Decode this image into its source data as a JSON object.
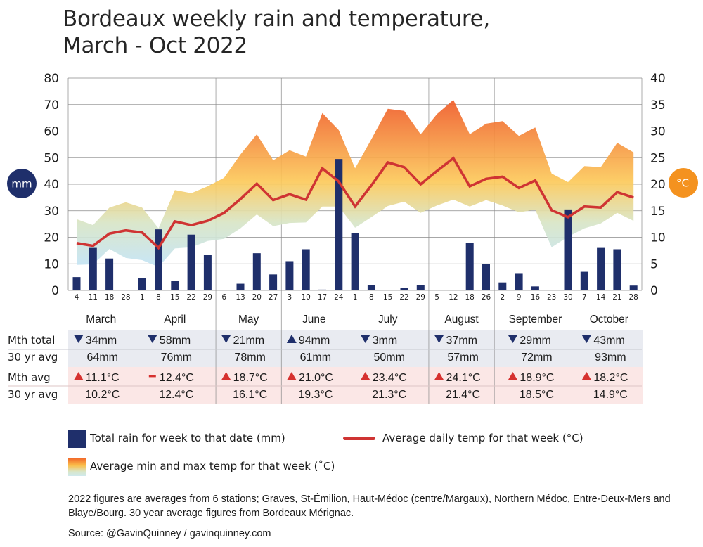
{
  "title": {
    "line1": "Bordeaux weekly rain and temperature,",
    "line2": "March - Oct 2022"
  },
  "badges": {
    "left": "mm",
    "right": "°C",
    "left_color": "#1f2f6b",
    "right_color": "#f4921f"
  },
  "colors": {
    "rain_bar": "#1f2f6b",
    "avg_temp_line": "#cf3433",
    "band_top": "#f0602a",
    "band_mid": "#fccb5a",
    "band_low": "#d3e7d2",
    "band_bottom": "#c9e6f2",
    "rain_row_bg": "#e9ebf1",
    "temp_row_bg": "#fbe7e6",
    "down_marker": "#1f2f6b",
    "up_marker_rain": "#1f2f6b",
    "up_marker_temp": "#d6312f"
  },
  "chart_data": {
    "type": "bar+line+area",
    "title": "Bordeaux weekly rain and temperature, March - Oct 2022",
    "left_axis": {
      "label": "mm",
      "ylim": [
        0,
        80
      ],
      "ticks": [
        "0",
        "10",
        "20",
        "30",
        "40",
        "50",
        "60",
        "70",
        "80"
      ]
    },
    "right_axis": {
      "label": "°C",
      "ylim": [
        0,
        40
      ],
      "ticks": [
        "0",
        "5",
        "10",
        "15",
        "20",
        "25",
        "30",
        "35",
        "40"
      ]
    },
    "grid": true,
    "months": [
      {
        "name": "March",
        "weeks": [
          "4",
          "11",
          "18",
          "28"
        ]
      },
      {
        "name": "April",
        "weeks": [
          "1",
          "8",
          "15",
          "22",
          "29"
        ]
      },
      {
        "name": "May",
        "weeks": [
          "6",
          "13",
          "20",
          "27"
        ]
      },
      {
        "name": "June",
        "weeks": [
          "3",
          "10",
          "17",
          "24"
        ]
      },
      {
        "name": "July",
        "weeks": [
          "1",
          "8",
          "15",
          "22",
          "29"
        ]
      },
      {
        "name": "August",
        "weeks": [
          "5",
          "12",
          "18",
          "26"
        ]
      },
      {
        "name": "September",
        "weeks": [
          "2",
          "9",
          "16",
          "23",
          "30"
        ]
      },
      {
        "name": "October",
        "weeks": [
          "7",
          "14",
          "21",
          "28"
        ]
      }
    ],
    "series": [
      {
        "name": "Total rain for week to that date (mm)",
        "type": "bar",
        "axis": "left",
        "values": [
          5,
          16,
          12,
          0,
          4.5,
          23,
          3.5,
          21,
          13.5,
          0,
          2.5,
          14,
          6,
          11,
          15.5,
          0.3,
          49.5,
          21.5,
          2,
          0,
          0.8,
          2,
          0,
          0,
          17.8,
          10,
          3,
          6.5,
          1.5,
          0,
          30.5,
          7,
          16,
          15.5,
          1.8
        ]
      },
      {
        "name": "Average daily temp for that week (°C)",
        "type": "line",
        "axis": "right",
        "values": [
          8.9,
          8.4,
          10.7,
          11.3,
          10.9,
          8.0,
          13.0,
          12.3,
          13.1,
          14.6,
          17.2,
          20.1,
          17.0,
          18.1,
          17.1,
          23.0,
          20.5,
          15.8,
          19.8,
          24.1,
          23.2,
          20.0,
          22.5,
          24.9,
          19.6,
          21.0,
          21.4,
          19.3,
          20.7,
          15.1,
          13.8,
          15.8,
          15.6,
          18.5,
          17.5
        ]
      },
      {
        "name": "Average min and max temp for that week (°C)",
        "type": "area",
        "axis": "right",
        "max": [
          13.4,
          12.3,
          15.6,
          16.6,
          15.6,
          11.7,
          18.9,
          18.3,
          19.6,
          21.2,
          25.6,
          29.4,
          24.5,
          26.4,
          25.2,
          33.4,
          30.2,
          23.0,
          28.5,
          34.2,
          33.8,
          29.4,
          33.2,
          35.9,
          29.4,
          31.4,
          31.9,
          29.1,
          30.7,
          22.0,
          20.4,
          23.4,
          23.2,
          27.8,
          26.0
        ],
        "min": [
          4.8,
          4.9,
          7.8,
          6.1,
          5.7,
          4.4,
          7.9,
          8.1,
          9.3,
          9.7,
          11.7,
          14.3,
          12.1,
          12.7,
          12.8,
          15.8,
          15.8,
          11.8,
          13.8,
          15.9,
          16.7,
          14.6,
          16.0,
          17.1,
          15.8,
          17.0,
          16.0,
          14.7,
          15.2,
          8.1,
          10.1,
          11.7,
          12.6,
          14.6,
          13.1
        ]
      }
    ]
  },
  "table": {
    "rows": [
      {
        "label": "Mth total",
        "kind": "rain"
      },
      {
        "label": "30 yr avg",
        "kind": "rain"
      },
      {
        "label": "Mth avg",
        "kind": "temp"
      },
      {
        "label": "30 yr avg",
        "kind": "temp"
      }
    ],
    "months": [
      {
        "rain_total": "34mm",
        "rain_marker": "down",
        "rain_avg": "64mm",
        "temp_avg": "11.1°C",
        "temp_marker": "up",
        "temp_30": "10.2°C"
      },
      {
        "rain_total": "58mm",
        "rain_marker": "down",
        "rain_avg": "76mm",
        "temp_avg": "12.4°C",
        "temp_marker": "same",
        "temp_30": "12.4°C"
      },
      {
        "rain_total": "21mm",
        "rain_marker": "down",
        "rain_avg": "78mm",
        "temp_avg": "18.7°C",
        "temp_marker": "up",
        "temp_30": "16.1°C"
      },
      {
        "rain_total": "94mm",
        "rain_marker": "up",
        "rain_avg": "61mm",
        "temp_avg": "21.0°C",
        "temp_marker": "up",
        "temp_30": "19.3°C"
      },
      {
        "rain_total": "3mm",
        "rain_marker": "down",
        "rain_avg": "50mm",
        "temp_avg": "23.4°C",
        "temp_marker": "up",
        "temp_30": "21.3°C"
      },
      {
        "rain_total": "37mm",
        "rain_marker": "down",
        "rain_avg": "57mm",
        "temp_avg": "24.1°C",
        "temp_marker": "up",
        "temp_30": "21.4°C"
      },
      {
        "rain_total": "29mm",
        "rain_marker": "down",
        "rain_avg": "72mm",
        "temp_avg": "18.9°C",
        "temp_marker": "up",
        "temp_30": "18.5°C"
      },
      {
        "rain_total": "43mm",
        "rain_marker": "down",
        "rain_avg": "93mm",
        "temp_avg": "18.2°C",
        "temp_marker": "up",
        "temp_30": "14.9°C"
      }
    ]
  },
  "legend": {
    "rain": "Total rain for week to that date (mm)",
    "line": "Average daily temp for that week (°C)",
    "band": "Average min and max temp for that week (˚C)"
  },
  "notes": {
    "stations": "2022 figures are averages from 6 stations; Graves, St-Émilion, Haut-Médoc (centre/Margaux), Northern Médoc, Entre-Deux-Mers and Blaye/Bourg. 30 year average figures from Bordeaux Mérignac.",
    "source": "Source: @GavinQuinney / gavinquinney.com"
  }
}
